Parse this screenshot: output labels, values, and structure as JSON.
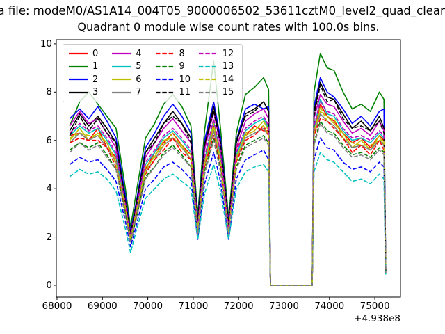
{
  "figure": {
    "suptitle": "a file: modeM0/AS1A14_004T05_9000006502_53611cztM0_level2_quad_clean",
    "title": "Quadrant 0 module wise count rates with 100.0s bins."
  },
  "axes": {
    "x_offset": "+4.938e8"
  },
  "chart_data": {
    "type": "line",
    "title": "Quadrant 0 module wise count rates with 100.0s bins.",
    "xlabel": "",
    "ylabel": "",
    "x_offset_text": "+4.938e8",
    "xlim": [
      67985,
      75565
    ],
    "ylim": [
      -0.49,
      10.17
    ],
    "xticks": [
      68000,
      69000,
      70000,
      71000,
      72000,
      73000,
      74000,
      75000
    ],
    "yticks": [
      0,
      2,
      4,
      6,
      8,
      10
    ],
    "grid": false,
    "legend_position": "upper-left",
    "legend_columns": 4,
    "x": [
      68280,
      68500,
      68700,
      68900,
      69100,
      69300,
      69500,
      69620,
      69750,
      69950,
      70150,
      70350,
      70550,
      70750,
      70950,
      71100,
      71250,
      71450,
      71600,
      71780,
      71950,
      72150,
      72350,
      72550,
      72660,
      72700,
      73620,
      73660,
      73800,
      73950,
      74100,
      74300,
      74500,
      74700,
      74900,
      75100,
      75200,
      75240
    ],
    "series": [
      {
        "name": "0",
        "color": "#ff0000",
        "style": "solid",
        "values": [
          6.2,
          6.3,
          6.0,
          6.5,
          5.7,
          5.3,
          3.1,
          1.9,
          3.0,
          4.8,
          5.5,
          5.9,
          6.3,
          5.8,
          5.4,
          2.4,
          5.0,
          6.6,
          5.6,
          2.3,
          5.7,
          6.2,
          6.6,
          6.4,
          6.4,
          0,
          0,
          6.3,
          7.5,
          7.0,
          6.8,
          6.3,
          5.9,
          6.1,
          5.7,
          6.2,
          6.0,
          0.6
        ]
      },
      {
        "name": "1",
        "color": "#008000",
        "style": "solid",
        "values": [
          6.6,
          7.6,
          8.0,
          7.5,
          7.0,
          6.5,
          4.1,
          2.4,
          3.9,
          6.1,
          6.7,
          7.5,
          7.9,
          7.4,
          6.6,
          2.9,
          6.4,
          9.3,
          6.5,
          2.8,
          6.3,
          7.9,
          8.2,
          8.6,
          8.1,
          0,
          0,
          8.0,
          9.6,
          9.0,
          8.9,
          8.0,
          7.3,
          7.5,
          7.2,
          8.0,
          7.7,
          0.7
        ]
      },
      {
        "name": "2",
        "color": "#0000ff",
        "style": "solid",
        "values": [
          6.9,
          7.3,
          6.9,
          7.4,
          6.8,
          6.1,
          3.8,
          2.2,
          3.5,
          5.7,
          6.3,
          7.0,
          7.5,
          7.0,
          6.3,
          2.7,
          6.0,
          7.6,
          6.1,
          2.6,
          6.0,
          7.3,
          7.5,
          7.3,
          7.4,
          0,
          0,
          7.4,
          8.6,
          8.0,
          7.8,
          7.3,
          6.7,
          7.0,
          6.6,
          7.2,
          7.3,
          0.65
        ]
      },
      {
        "name": "3",
        "color": "#000000",
        "style": "solid",
        "values": [
          6.4,
          7.1,
          6.6,
          7.0,
          6.5,
          5.9,
          3.6,
          2.1,
          3.4,
          5.5,
          6.1,
          6.7,
          7.2,
          6.7,
          6.1,
          2.6,
          5.8,
          7.4,
          5.9,
          2.5,
          5.9,
          7.1,
          7.3,
          7.6,
          7.2,
          0,
          0,
          7.2,
          8.4,
          7.8,
          7.7,
          7.1,
          6.5,
          6.8,
          6.4,
          7.0,
          6.5,
          0.6
        ]
      },
      {
        "name": "4",
        "color": "#bf00bf",
        "style": "solid",
        "values": [
          6.6,
          7.2,
          6.7,
          6.9,
          6.3,
          5.7,
          3.5,
          2.1,
          3.3,
          5.3,
          5.9,
          6.5,
          6.9,
          6.4,
          5.9,
          2.5,
          5.6,
          7.2,
          5.8,
          2.4,
          5.7,
          6.8,
          7.1,
          7.3,
          6.9,
          0,
          0,
          6.9,
          7.9,
          7.5,
          7.4,
          6.8,
          6.3,
          6.5,
          6.2,
          6.8,
          6.4,
          0.6
        ]
      },
      {
        "name": "5",
        "color": "#00bfbf",
        "style": "solid",
        "values": [
          6.2,
          6.6,
          6.3,
          6.5,
          6.0,
          5.4,
          3.3,
          2.0,
          3.1,
          5.0,
          5.5,
          6.1,
          6.4,
          6.0,
          5.5,
          2.4,
          5.2,
          6.8,
          5.4,
          2.3,
          5.4,
          6.4,
          6.7,
          6.9,
          6.5,
          0,
          0,
          6.5,
          7.7,
          7.1,
          7.0,
          6.4,
          6.0,
          6.1,
          5.9,
          6.3,
          6.1,
          0.6
        ]
      },
      {
        "name": "6",
        "color": "#bfbf00",
        "style": "solid",
        "values": [
          6.0,
          6.5,
          6.0,
          6.3,
          5.9,
          5.1,
          3.2,
          1.9,
          3.0,
          4.9,
          5.3,
          6.0,
          6.1,
          5.8,
          5.2,
          2.3,
          5.1,
          6.5,
          5.2,
          2.2,
          5.3,
          6.2,
          6.4,
          6.8,
          6.4,
          0,
          0,
          6.4,
          7.2,
          7.0,
          6.7,
          6.3,
          5.7,
          6.0,
          5.6,
          6.2,
          5.8,
          0.55
        ]
      },
      {
        "name": "7",
        "color": "#808080",
        "style": "solid",
        "values": [
          5.9,
          6.3,
          6.0,
          6.2,
          5.7,
          5.1,
          3.1,
          1.9,
          2.9,
          4.7,
          5.2,
          5.8,
          6.1,
          5.7,
          5.2,
          2.3,
          4.9,
          6.4,
          5.1,
          2.2,
          5.2,
          6.1,
          6.3,
          6.5,
          6.2,
          0,
          0,
          6.2,
          7.1,
          6.8,
          6.6,
          6.1,
          5.7,
          5.8,
          5.6,
          6.0,
          5.8,
          0.5
        ]
      },
      {
        "name": "8",
        "color": "#ff0000",
        "style": "dashed",
        "values": [
          5.9,
          6.1,
          6.0,
          6.0,
          5.7,
          4.9,
          3.1,
          1.8,
          2.9,
          4.6,
          5.2,
          5.6,
          6.1,
          5.5,
          5.2,
          2.2,
          4.9,
          6.2,
          5.0,
          2.2,
          5.1,
          6.0,
          6.2,
          6.6,
          6.2,
          0,
          0,
          6.2,
          6.9,
          6.8,
          6.5,
          6.1,
          5.5,
          5.8,
          5.4,
          6.0,
          5.6,
          0.5
        ]
      },
      {
        "name": "9",
        "color": "#008000",
        "style": "dashed",
        "values": [
          5.6,
          5.9,
          5.7,
          5.9,
          5.4,
          4.8,
          3.0,
          1.8,
          2.8,
          4.5,
          4.9,
          5.5,
          5.8,
          5.4,
          4.9,
          2.1,
          4.7,
          6.1,
          4.8,
          2.1,
          4.9,
          5.8,
          6.0,
          6.2,
          5.9,
          0,
          0,
          5.9,
          6.8,
          6.4,
          6.3,
          5.8,
          5.4,
          5.5,
          5.3,
          5.7,
          5.5,
          0.5
        ]
      },
      {
        "name": "10",
        "color": "#0000ff",
        "style": "dashed",
        "values": [
          5.0,
          5.3,
          5.1,
          5.2,
          4.8,
          4.3,
          2.7,
          1.6,
          2.5,
          4.0,
          4.4,
          4.9,
          5.1,
          4.8,
          4.4,
          1.9,
          4.2,
          5.5,
          4.3,
          1.9,
          4.4,
          5.2,
          5.4,
          5.6,
          5.2,
          0,
          0,
          5.2,
          6.1,
          5.7,
          5.6,
          5.1,
          4.8,
          4.9,
          4.7,
          5.1,
          4.9,
          0.45
        ]
      },
      {
        "name": "11",
        "color": "#000000",
        "style": "dashed",
        "values": [
          6.2,
          7.0,
          6.4,
          6.9,
          6.3,
          5.9,
          3.5,
          2.1,
          3.3,
          5.5,
          5.9,
          6.7,
          7.0,
          6.7,
          5.9,
          2.6,
          5.8,
          7.2,
          5.9,
          2.5,
          6.0,
          7.0,
          7.2,
          7.6,
          7.2,
          0,
          0,
          7.0,
          8.3,
          7.6,
          7.7,
          6.9,
          6.5,
          6.6,
          6.4,
          6.8,
          6.3,
          0.6
        ]
      },
      {
        "name": "12",
        "color": "#bf00bf",
        "style": "dashed",
        "values": [
          6.3,
          6.7,
          6.4,
          6.6,
          6.1,
          5.5,
          3.4,
          2.0,
          3.2,
          5.1,
          5.6,
          6.2,
          6.5,
          6.1,
          5.6,
          2.4,
          5.3,
          6.9,
          5.5,
          2.3,
          5.5,
          6.5,
          6.8,
          7.0,
          6.6,
          0,
          0,
          6.6,
          7.6,
          7.2,
          7.1,
          6.5,
          6.1,
          6.2,
          6.0,
          6.4,
          6.2,
          0.6
        ]
      },
      {
        "name": "13",
        "color": "#00bfbf",
        "style": "dashed",
        "values": [
          4.5,
          4.8,
          4.6,
          4.7,
          4.4,
          3.9,
          2.4,
          1.35,
          2.3,
          3.6,
          4.0,
          4.4,
          4.6,
          4.3,
          4.0,
          1.9,
          3.8,
          5.0,
          3.9,
          1.9,
          4.0,
          4.7,
          4.9,
          5.0,
          4.7,
          0,
          0,
          4.7,
          5.5,
          5.2,
          5.1,
          4.7,
          4.3,
          4.4,
          4.2,
          4.6,
          4.4,
          0.4
        ]
      },
      {
        "name": "14",
        "color": "#bfbf00",
        "style": "dashed",
        "values": [
          6.1,
          6.3,
          6.2,
          6.2,
          5.9,
          5.0,
          3.3,
          1.9,
          3.1,
          4.7,
          5.4,
          5.8,
          6.3,
          5.7,
          5.4,
          2.3,
          5.0,
          6.7,
          5.1,
          2.2,
          5.2,
          6.3,
          6.5,
          6.6,
          6.2,
          0,
          0,
          6.3,
          7.4,
          6.8,
          6.9,
          6.1,
          5.9,
          5.8,
          5.8,
          6.0,
          6.0,
          0.55
        ]
      },
      {
        "name": "15",
        "color": "#808080",
        "style": "dashed",
        "values": [
          5.5,
          5.9,
          5.6,
          5.8,
          5.3,
          4.8,
          2.9,
          1.75,
          2.8,
          4.4,
          4.9,
          5.4,
          5.7,
          5.3,
          4.9,
          2.1,
          4.6,
          6.0,
          4.7,
          2.1,
          4.8,
          5.7,
          5.9,
          6.1,
          5.8,
          0,
          0,
          5.8,
          6.7,
          6.3,
          6.2,
          5.7,
          5.3,
          5.4,
          5.2,
          5.6,
          5.4,
          0.5
        ]
      }
    ]
  }
}
